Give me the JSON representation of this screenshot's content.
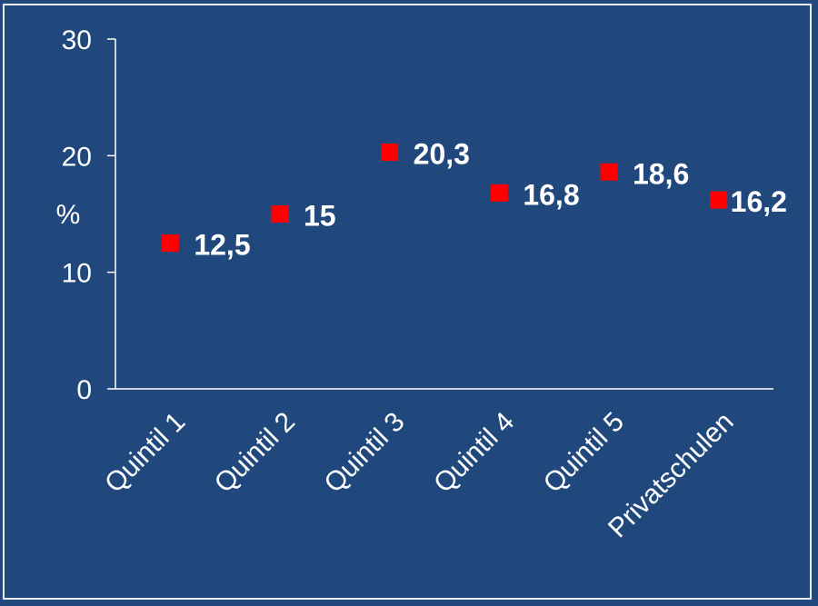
{
  "chart_data": {
    "type": "scatter",
    "title": "",
    "xlabel": "",
    "ylabel": "%",
    "ylim": [
      0,
      30
    ],
    "yticks": [
      0,
      10,
      20,
      30
    ],
    "grid": false,
    "legend": "none",
    "categories": [
      "Quintil 1",
      "Quintil 2",
      "Quintil 3",
      "Quintil 4",
      "Quintil 5",
      "Privatschulen"
    ],
    "values": [
      12.5,
      15,
      20.3,
      16.8,
      18.6,
      16.2
    ],
    "data_labels": [
      "12,5",
      "15",
      "20,3",
      "16,8",
      "18,6",
      "16,2"
    ],
    "colors": {
      "background": "#20487d",
      "marker": "#ff0000",
      "text": "#ffffff",
      "axis": "#ffffff"
    }
  }
}
